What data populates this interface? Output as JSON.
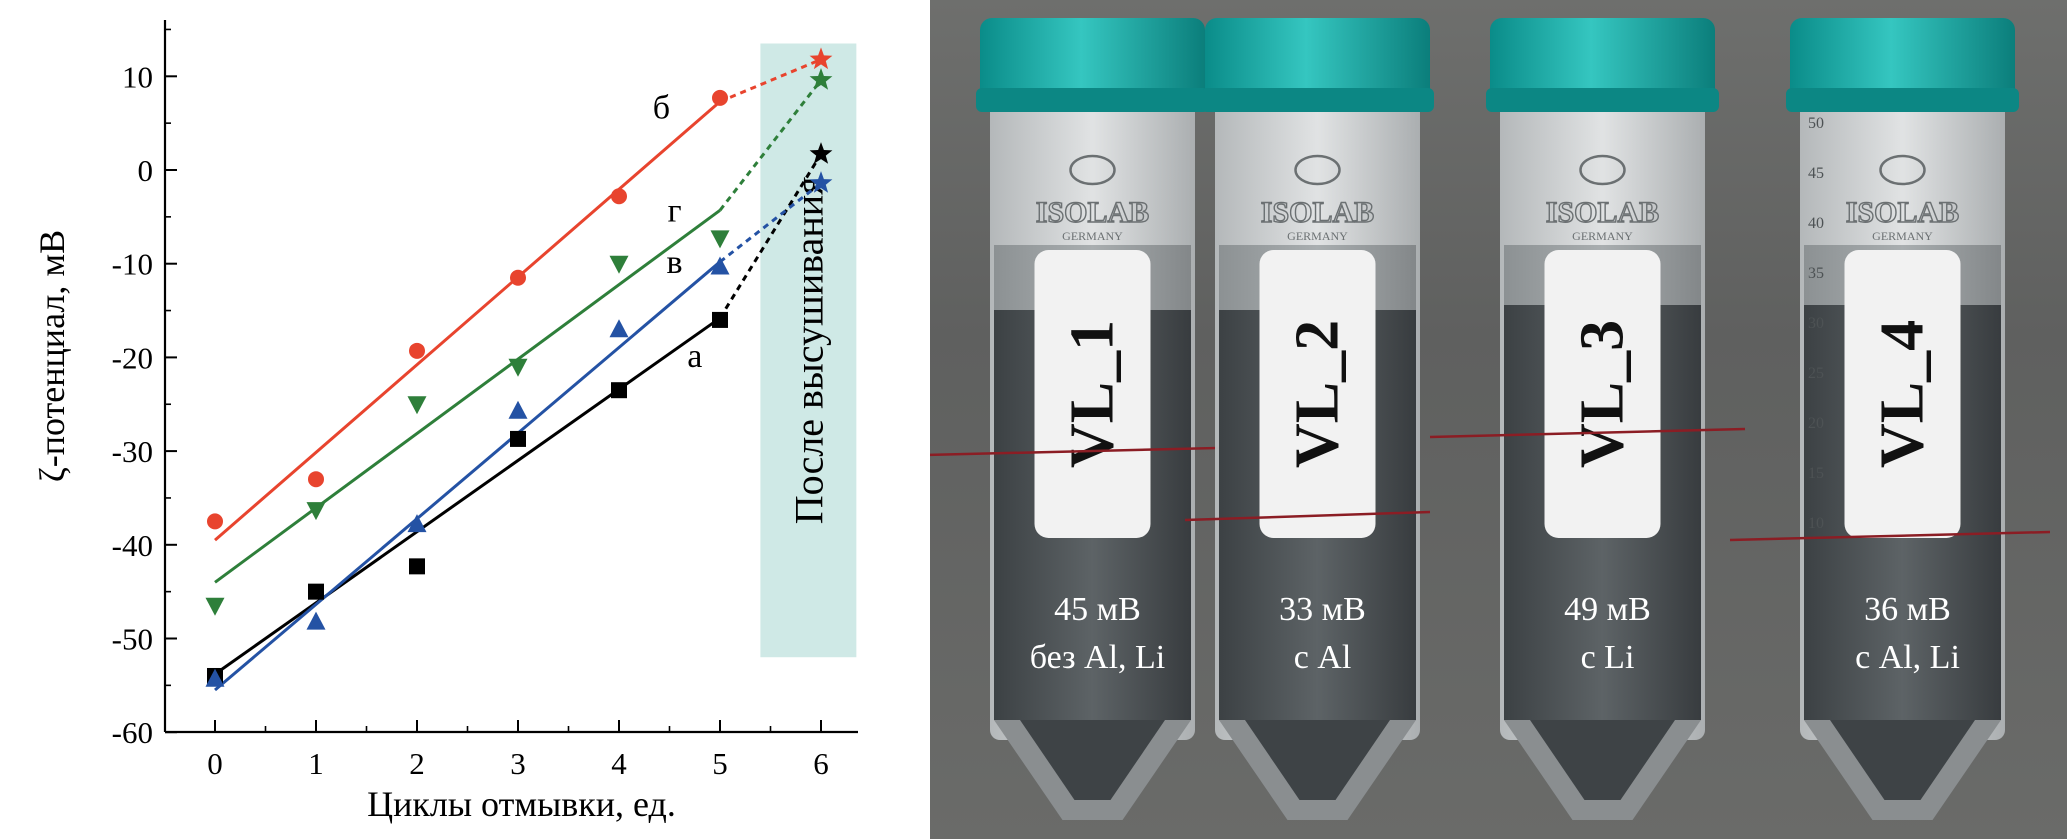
{
  "chart_data": {
    "type": "scatter",
    "xlabel": "Циклы отмывки, ед.",
    "ylabel": "ζ-потенциал, мВ",
    "xlim": [
      -0.6,
      6.35
    ],
    "ylim": [
      -60,
      15
    ],
    "xticks": [
      0,
      1,
      2,
      3,
      4,
      5,
      6
    ],
    "yticks": [
      -60,
      -50,
      -40,
      -30,
      -20,
      -10,
      0,
      10
    ],
    "grid": false,
    "region": {
      "label": "После высушивания",
      "x_range": [
        5.4,
        6.35
      ],
      "y_range": [
        -52,
        13.5
      ],
      "color": "#cfe9e6"
    },
    "series": [
      {
        "name": "а",
        "marker": "square",
        "color": "#000000",
        "x": [
          0,
          1,
          2,
          3,
          4,
          5
        ],
        "y": [
          -54,
          -45,
          -42.3,
          -28.7,
          -23.5,
          -16
        ],
        "fit_x": [
          0,
          5
        ],
        "fit_y": [
          -53.8,
          -15.8
        ],
        "dried_x": 6,
        "dried_y": 1.7
      },
      {
        "name": "б",
        "marker": "circle",
        "color": "#e8442e",
        "x": [
          0,
          1,
          2,
          3,
          4,
          5
        ],
        "y": [
          -37.5,
          -33,
          -19.3,
          -11.5,
          -2.8,
          7.7
        ],
        "fit_x": [
          0,
          5
        ],
        "fit_y": [
          -39.5,
          7.3
        ],
        "dried_x": 6,
        "dried_y": 11.8
      },
      {
        "name": "в",
        "marker": "triangle-up",
        "color": "#2452a4",
        "x": [
          0,
          1,
          2,
          3,
          4,
          5
        ],
        "y": [
          -54.3,
          -48.2,
          -37.8,
          -25.7,
          -17,
          -10.3
        ],
        "fit_x": [
          0,
          5
        ],
        "fit_y": [
          -55.5,
          -9.8
        ],
        "dried_x": 6,
        "dried_y": -1.4
      },
      {
        "name": "г",
        "marker": "triangle-down",
        "color": "#2e7f3a",
        "x": [
          0,
          1,
          2,
          3,
          4,
          5
        ],
        "y": [
          -46.5,
          -36.3,
          -25,
          -21,
          -10,
          -7.3
        ],
        "fit_x": [
          0,
          5
        ],
        "fit_y": [
          -44,
          -4.3
        ],
        "dried_x": 6,
        "dried_y": 9.6
      }
    ],
    "annotations": [
      {
        "text": "б",
        "x": 4.42,
        "y": 5.5
      },
      {
        "text": "г",
        "x": 4.55,
        "y": -5.5
      },
      {
        "text": "в",
        "x": 4.55,
        "y": -11
      },
      {
        "text": "а",
        "x": 4.75,
        "y": -21
      }
    ]
  },
  "photo": {
    "tubes": [
      {
        "label": "VL_1",
        "value": "45 мВ",
        "composition": "без Al, Li"
      },
      {
        "label": "VL_2",
        "value": "33 мВ",
        "composition": "с Al"
      },
      {
        "label": "VL_3",
        "value": "49 мВ",
        "composition": "с Li"
      },
      {
        "label": "VL_4",
        "value": "36 мВ",
        "composition": "с Al, Li"
      }
    ],
    "logo_text": "ISOLAB",
    "logo_subtext": "GERMANY",
    "scale_marks": [
      "50",
      "45",
      "40",
      "35",
      "30",
      "25",
      "20",
      "15",
      "10"
    ]
  }
}
